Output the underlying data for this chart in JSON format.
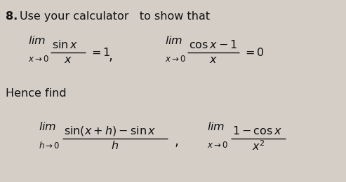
{
  "bg_color": "#d4cec7",
  "text_color": "#111111",
  "figsize": [
    4.93,
    2.6
  ],
  "dpi": 100
}
